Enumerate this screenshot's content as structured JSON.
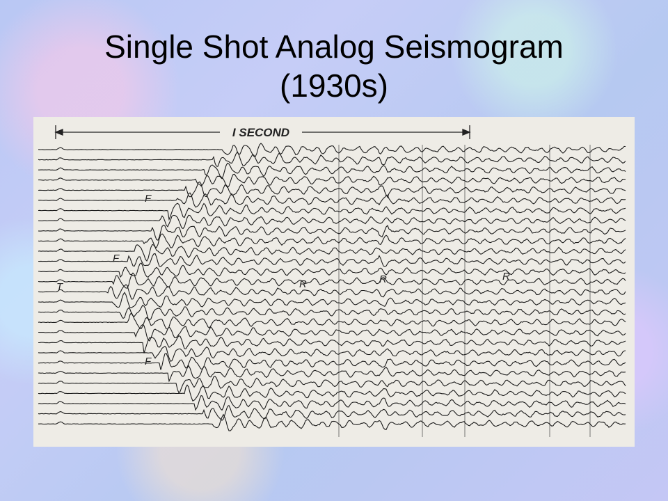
{
  "slide": {
    "title_lines": [
      "Single Shot Analog Seismogram",
      "(1930s)"
    ]
  },
  "figure": {
    "scale_label": "I SECOND",
    "labels": [
      "T",
      "F",
      "F",
      "F",
      "R",
      "R",
      "R"
    ]
  }
}
